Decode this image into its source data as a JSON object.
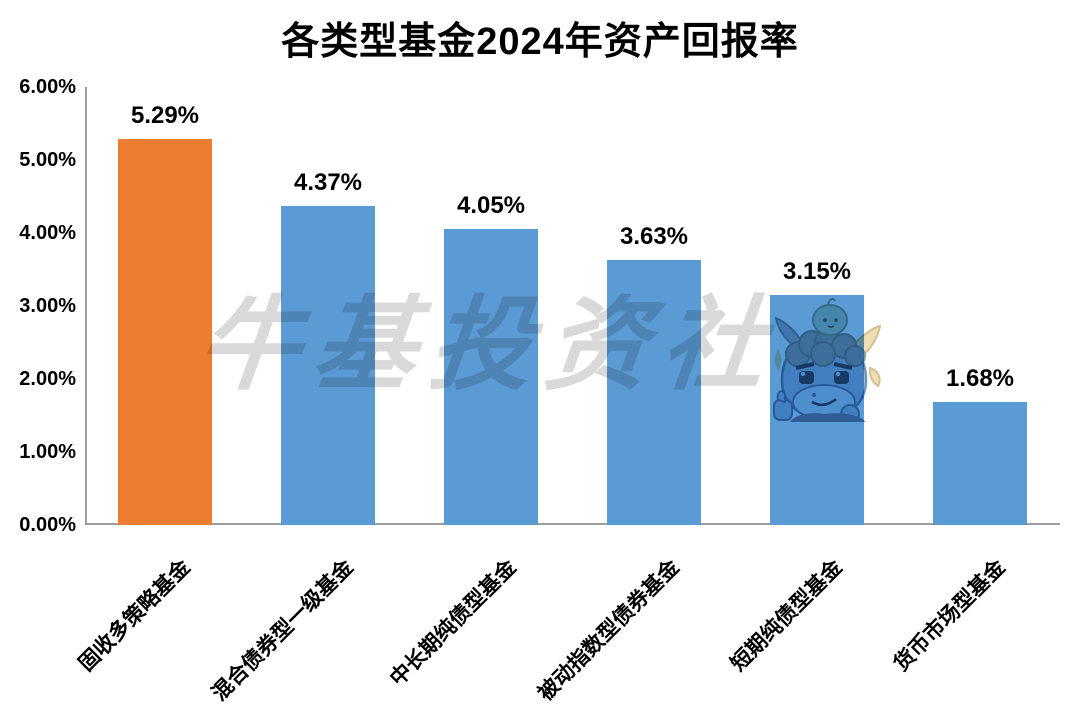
{
  "title": "各类型基金2024年资产回报率",
  "watermark": {
    "text": "牛基投资社",
    "mascot_icon": "bull-mascot-icon"
  },
  "chart_data": {
    "type": "bar",
    "title": "各类型基金2024年资产回报率",
    "categories": [
      "固收多策略基金",
      "混合债券型一级基金",
      "中长期纯债型基金",
      "被动指数型债券基金",
      "短期纯债型基金",
      "货币市场型基金"
    ],
    "values": [
      5.29,
      4.37,
      4.05,
      3.63,
      3.15,
      1.68
    ],
    "value_labels": [
      "5.29%",
      "4.37%",
      "4.05%",
      "3.63%",
      "3.15%",
      "1.68%"
    ],
    "bar_colors": [
      "#ED7D31",
      "#5B9BD5",
      "#5B9BD5",
      "#5B9BD5",
      "#5B9BD5",
      "#5B9BD5"
    ],
    "xlabel": "",
    "ylabel": "",
    "ylim": [
      0,
      6
    ],
    "ytick_step": 1,
    "ytick_labels": [
      "0.00%",
      "1.00%",
      "2.00%",
      "3.00%",
      "4.00%",
      "5.00%",
      "6.00%"
    ],
    "grid": false,
    "legend": false,
    "xtick_rotation_deg": 45
  },
  "colors": {
    "highlight_bar": "#ED7D31",
    "default_bar": "#5B9BD5",
    "axis_line": "#9d9d9d",
    "watermark_gray": "#d9d9d9",
    "text": "#000000"
  }
}
